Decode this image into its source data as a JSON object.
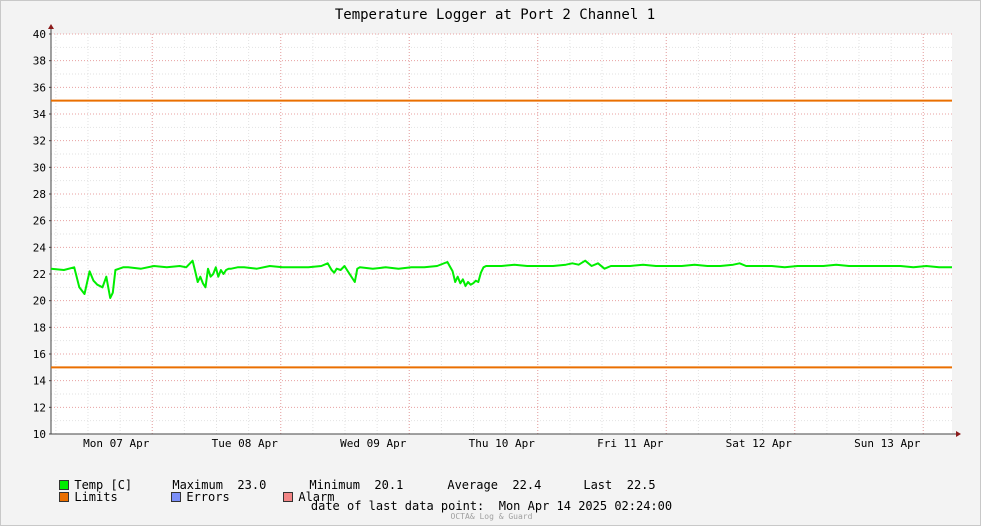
{
  "chart_data": {
    "type": "line",
    "title": "Temperature Logger at Port 2 Channel 1",
    "ylim": [
      10,
      40
    ],
    "y_ticks": [
      10,
      12,
      14,
      16,
      18,
      20,
      22,
      24,
      26,
      28,
      30,
      32,
      34,
      36,
      38,
      40
    ],
    "x_range_days": [
      0,
      7
    ],
    "x_tick_labels": [
      "Mon 07 Apr",
      "Tue 08 Apr",
      "Wed 09 Apr",
      "Thu 10 Apr",
      "Fri 11 Apr",
      "Sat 12 Apr",
      "Sun 13 Apr"
    ],
    "grid": true,
    "series": [
      {
        "name": "Temp [C]",
        "color": "#00ee00",
        "x": [
          0.0,
          0.1,
          0.18,
          0.22,
          0.26,
          0.3,
          0.33,
          0.36,
          0.4,
          0.43,
          0.46,
          0.48,
          0.5,
          0.53,
          0.56,
          0.6,
          0.7,
          0.8,
          0.9,
          1.0,
          1.05,
          1.1,
          1.12,
          1.14,
          1.16,
          1.18,
          1.2,
          1.22,
          1.24,
          1.26,
          1.28,
          1.3,
          1.32,
          1.34,
          1.36,
          1.38,
          1.4,
          1.45,
          1.5,
          1.6,
          1.7,
          1.8,
          1.9,
          2.0,
          2.1,
          2.15,
          2.18,
          2.2,
          2.22,
          2.25,
          2.28,
          2.3,
          2.32,
          2.34,
          2.36,
          2.38,
          2.4,
          2.5,
          2.6,
          2.7,
          2.8,
          2.9,
          3.0,
          3.08,
          3.12,
          3.14,
          3.16,
          3.18,
          3.2,
          3.22,
          3.24,
          3.26,
          3.28,
          3.3,
          3.32,
          3.34,
          3.36,
          3.38,
          3.4,
          3.5,
          3.6,
          3.7,
          3.8,
          3.9,
          4.0,
          4.05,
          4.1,
          4.15,
          4.2,
          4.25,
          4.3,
          4.35,
          4.4,
          4.5,
          4.6,
          4.7,
          4.8,
          4.9,
          5.0,
          5.1,
          5.2,
          5.3,
          5.35,
          5.4,
          5.5,
          5.6,
          5.7,
          5.8,
          5.9,
          6.0,
          6.1,
          6.2,
          6.3,
          6.4,
          6.5,
          6.6,
          6.7,
          6.8,
          6.9,
          7.0
        ],
        "y": [
          22.4,
          22.3,
          22.5,
          21.0,
          20.5,
          22.2,
          21.5,
          21.2,
          21.0,
          21.8,
          20.2,
          20.6,
          22.3,
          22.4,
          22.5,
          22.5,
          22.4,
          22.6,
          22.5,
          22.6,
          22.5,
          23.0,
          22.2,
          21.4,
          21.8,
          21.3,
          21.0,
          22.4,
          21.8,
          22.0,
          22.5,
          21.8,
          22.3,
          22.0,
          22.3,
          22.4,
          22.4,
          22.5,
          22.5,
          22.4,
          22.6,
          22.5,
          22.5,
          22.5,
          22.6,
          22.8,
          22.3,
          22.1,
          22.4,
          22.3,
          22.6,
          22.3,
          22.0,
          21.7,
          21.4,
          22.4,
          22.5,
          22.4,
          22.5,
          22.4,
          22.5,
          22.5,
          22.6,
          22.9,
          22.2,
          21.4,
          21.8,
          21.3,
          21.6,
          21.1,
          21.4,
          21.2,
          21.3,
          21.5,
          21.4,
          22.1,
          22.5,
          22.6,
          22.6,
          22.6,
          22.7,
          22.6,
          22.6,
          22.6,
          22.7,
          22.8,
          22.7,
          23.0,
          22.6,
          22.8,
          22.4,
          22.6,
          22.6,
          22.6,
          22.7,
          22.6,
          22.6,
          22.6,
          22.7,
          22.6,
          22.6,
          22.7,
          22.8,
          22.6,
          22.6,
          22.6,
          22.5,
          22.6,
          22.6,
          22.6,
          22.7,
          22.6,
          22.6,
          22.6,
          22.6,
          22.6,
          22.5,
          22.6,
          22.5,
          22.5
        ]
      },
      {
        "name": "Limits",
        "color": "#ea6f00",
        "values": [
          35,
          15
        ]
      }
    ],
    "legend_placement": "bottom-left"
  },
  "legend": {
    "temp_label": "Temp [C]",
    "maximum_label": "Maximum",
    "maximum_value": "23.0",
    "minimum_label": "Minimum",
    "minimum_value": "20.1",
    "average_label": "Average",
    "average_value": "22.4",
    "last_label": "Last",
    "last_value": "22.5",
    "limits_label": "Limits",
    "errors_label": "Errors",
    "alarm_label": "Alarm",
    "colors": {
      "temp": "#00ee00",
      "limits": "#ea6f00",
      "errors": "#7b8ff8",
      "alarm": "#f28585"
    }
  },
  "footer": {
    "date_label": "date of last data point:",
    "date_value": "Mon Apr 14 2025 02:24:00",
    "brand": "OCTA& Log & Guard"
  }
}
